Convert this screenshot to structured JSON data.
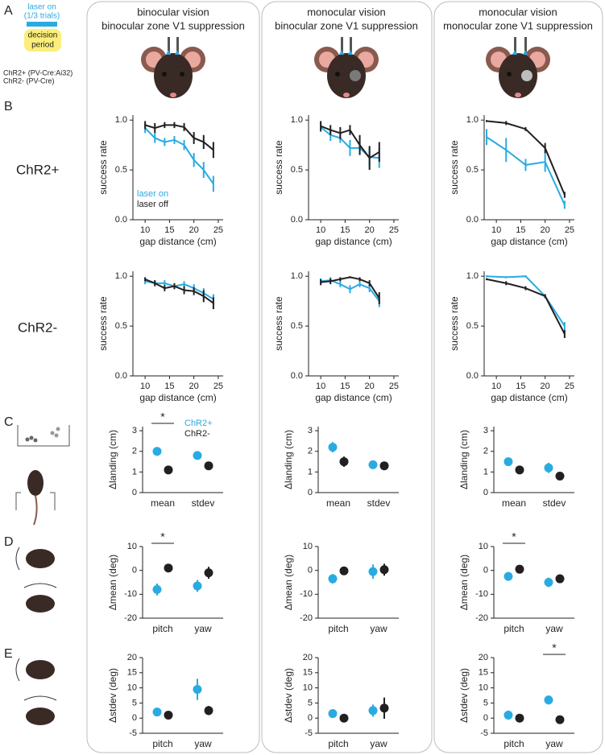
{
  "panel_labels": [
    "A",
    "B",
    "C",
    "D",
    "E"
  ],
  "legend": {
    "laser": [
      "laser on",
      "(1/3 trials)"
    ],
    "period": [
      "decision",
      "period"
    ],
    "genotypes": [
      "ChR2+ (PV-Cre:Ai32)",
      "ChR2- (PV-Cre)"
    ]
  },
  "row_labels": [
    "ChR2+",
    "ChR2-"
  ],
  "columns": [
    {
      "title": [
        "binocular vision",
        "binocular zone V1 suppression"
      ]
    },
    {
      "title": [
        "monocular vision",
        "binocular zone V1 suppression"
      ]
    },
    {
      "title": [
        "monocular vision",
        "monocular zone V1 suppression"
      ]
    }
  ],
  "chart_data": [
    {
      "type": "line",
      "xlabel": "gap distance (cm)",
      "ylabel": "success rate",
      "xlim": [
        7.5,
        26
      ],
      "ylim": [
        0,
        1.05
      ],
      "xticks": [
        10,
        15,
        20,
        25
      ],
      "yticks": [
        {
          "value": 0,
          "label": "0.0"
        },
        0.5,
        {
          "value": 1,
          "label": "1.0"
        }
      ],
      "legend": "lower left",
      "series": [
        {
          "name": "laser on",
          "color": "#29abe2",
          "x": [
            10,
            12,
            14,
            16,
            18,
            20,
            22,
            24
          ],
          "values": [
            0.92,
            0.82,
            0.78,
            0.8,
            0.75,
            0.6,
            0.5,
            0.36
          ],
          "errors": [
            0.05,
            0.05,
            0.04,
            0.04,
            0.05,
            0.07,
            0.08,
            0.08
          ]
        },
        {
          "name": "laser off",
          "color": "#231f20",
          "x": [
            10,
            12,
            14,
            16,
            18,
            20,
            22,
            24
          ],
          "values": [
            0.95,
            0.92,
            0.95,
            0.95,
            0.93,
            0.82,
            0.78,
            0.7
          ],
          "errors": [
            0.04,
            0.05,
            0.03,
            0.03,
            0.04,
            0.06,
            0.07,
            0.08
          ]
        }
      ]
    },
    {
      "type": "line",
      "xlabel": "gap distance (cm)",
      "ylabel": "success rate",
      "xlim": [
        7.5,
        26
      ],
      "ylim": [
        0,
        1.05
      ],
      "xticks": [
        10,
        15,
        20,
        25
      ],
      "yticks": [
        {
          "value": 0,
          "label": "0.0"
        },
        0.5,
        {
          "value": 1,
          "label": "1.0"
        }
      ],
      "series": [
        {
          "color": "#29abe2",
          "x": [
            10,
            12,
            14,
            16,
            18,
            20,
            22
          ],
          "values": [
            0.93,
            0.85,
            0.82,
            0.72,
            0.72,
            0.63,
            0.62
          ],
          "errors": [
            0.05,
            0.06,
            0.05,
            0.08,
            0.07,
            0.1,
            0.1
          ]
        },
        {
          "color": "#231f20",
          "x": [
            10,
            12,
            14,
            16,
            18,
            20,
            22
          ],
          "values": [
            0.94,
            0.9,
            0.87,
            0.9,
            0.75,
            0.62,
            0.68
          ],
          "errors": [
            0.05,
            0.05,
            0.06,
            0.05,
            0.1,
            0.12,
            0.1
          ]
        }
      ]
    },
    {
      "type": "line",
      "xlabel": "gap distance (cm)",
      "ylabel": "success rate",
      "xlim": [
        7.5,
        26
      ],
      "ylim": [
        0,
        1.05
      ],
      "xticks": [
        10,
        15,
        20,
        25
      ],
      "yticks": [
        {
          "value": 0,
          "label": "0.0"
        },
        0.5,
        {
          "value": 1,
          "label": "1.0"
        }
      ],
      "series": [
        {
          "color": "#29abe2",
          "x": [
            8,
            12,
            16,
            20,
            24
          ],
          "values": [
            0.83,
            0.7,
            0.55,
            0.58,
            0.15
          ],
          "errors": [
            0.08,
            0.12,
            0.06,
            0.1,
            0.04
          ]
        },
        {
          "color": "#231f20",
          "x": [
            8,
            12,
            16,
            20,
            24
          ],
          "values": [
            0.99,
            0.97,
            0.91,
            0.72,
            0.25
          ],
          "errors": [
            0.01,
            0.02,
            0.02,
            0.05,
            0.03
          ]
        }
      ]
    },
    {
      "type": "line",
      "xlabel": "gap distance (cm)",
      "ylabel": "success rate",
      "xlim": [
        7.5,
        26
      ],
      "ylim": [
        0,
        1.05
      ],
      "xticks": [
        10,
        15,
        20,
        25
      ],
      "yticks": [
        {
          "value": 0,
          "label": "0.0"
        },
        0.5,
        {
          "value": 1,
          "label": "1.0"
        }
      ],
      "series": [
        {
          "color": "#29abe2",
          "x": [
            10,
            12,
            14,
            16,
            18,
            20,
            22,
            24
          ],
          "values": [
            0.95,
            0.93,
            0.93,
            0.9,
            0.92,
            0.88,
            0.83,
            0.77
          ],
          "errors": [
            0.03,
            0.03,
            0.03,
            0.03,
            0.03,
            0.04,
            0.05,
            0.05
          ]
        },
        {
          "color": "#231f20",
          "x": [
            10,
            12,
            14,
            16,
            18,
            20,
            22,
            24
          ],
          "values": [
            0.97,
            0.93,
            0.88,
            0.9,
            0.86,
            0.85,
            0.8,
            0.73
          ],
          "errors": [
            0.02,
            0.03,
            0.03,
            0.03,
            0.04,
            0.04,
            0.06,
            0.06
          ]
        }
      ]
    },
    {
      "type": "line",
      "xlabel": "gap distance (cm)",
      "ylabel": "success rate",
      "xlim": [
        7.5,
        26
      ],
      "ylim": [
        0,
        1.05
      ],
      "xticks": [
        10,
        15,
        20,
        25
      ],
      "yticks": [
        {
          "value": 0,
          "label": "0.0"
        },
        0.5,
        {
          "value": 1,
          "label": "1.0"
        }
      ],
      "series": [
        {
          "color": "#29abe2",
          "x": [
            10,
            12,
            14,
            16,
            18,
            20,
            22
          ],
          "values": [
            0.95,
            0.96,
            0.92,
            0.87,
            0.92,
            0.88,
            0.75
          ],
          "errors": [
            0.03,
            0.03,
            0.03,
            0.04,
            0.03,
            0.04,
            0.06
          ]
        },
        {
          "color": "#231f20",
          "x": [
            10,
            12,
            14,
            16,
            18,
            20,
            22
          ],
          "values": [
            0.94,
            0.95,
            0.97,
            0.99,
            0.97,
            0.93,
            0.78
          ],
          "errors": [
            0.03,
            0.03,
            0.02,
            0.01,
            0.02,
            0.03,
            0.06
          ]
        }
      ]
    },
    {
      "type": "line",
      "xlabel": "gap distance (cm)",
      "ylabel": "success rate",
      "xlim": [
        7.5,
        26
      ],
      "ylim": [
        0,
        1.05
      ],
      "xticks": [
        10,
        15,
        20,
        25
      ],
      "yticks": [
        {
          "value": 0,
          "label": "0.0"
        },
        0.5,
        {
          "value": 1,
          "label": "1.0"
        }
      ],
      "series": [
        {
          "color": "#29abe2",
          "x": [
            8,
            12,
            16,
            20,
            24
          ],
          "values": [
            1.0,
            0.99,
            1.0,
            0.8,
            0.5
          ],
          "errors": [
            0.01,
            0.01,
            0.01,
            0.02,
            0.04
          ]
        },
        {
          "color": "#231f20",
          "x": [
            8,
            12,
            16,
            20,
            24
          ],
          "values": [
            0.97,
            0.93,
            0.88,
            0.8,
            0.42
          ],
          "errors": [
            0.01,
            0.02,
            0.02,
            0.02,
            0.04
          ]
        }
      ]
    },
    {
      "type": "dot",
      "ylabel": "Δlanding (cm)",
      "categories": [
        "mean",
        "stdev"
      ],
      "ylim": [
        0,
        3.2
      ],
      "yticks": [
        0,
        1,
        2,
        3
      ],
      "legend": "upper right",
      "series": [
        {
          "name": "ChR2+",
          "color": "#29abe2",
          "values": [
            2.0,
            1.8
          ],
          "errors": [
            0.2,
            0.2
          ]
        },
        {
          "name": "ChR2-",
          "color": "#231f20",
          "values": [
            1.1,
            1.3
          ],
          "errors": [
            0.2,
            0.15
          ]
        }
      ],
      "significance": [
        {
          "text": "*",
          "category": 0
        }
      ]
    },
    {
      "type": "dot",
      "ylabel": "Δlanding (cm)",
      "categories": [
        "mean",
        "stdev"
      ],
      "ylim": [
        0,
        3.2
      ],
      "yticks": [
        0,
        1,
        2,
        3
      ],
      "series": [
        {
          "color": "#29abe2",
          "values": [
            2.2,
            1.35
          ],
          "errors": [
            0.25,
            0.15
          ]
        },
        {
          "color": "#231f20",
          "values": [
            1.5,
            1.3
          ],
          "errors": [
            0.25,
            0.15
          ]
        }
      ]
    },
    {
      "type": "dot",
      "ylabel": "Δlanding (cm)",
      "categories": [
        "mean",
        "stdev"
      ],
      "ylim": [
        0,
        3.2
      ],
      "yticks": [
        0,
        1,
        2,
        3
      ],
      "series": [
        {
          "color": "#29abe2",
          "values": [
            1.5,
            1.2
          ],
          "errors": [
            0.2,
            0.25
          ]
        },
        {
          "color": "#231f20",
          "values": [
            1.1,
            0.8
          ],
          "errors": [
            0.2,
            0.1
          ]
        }
      ]
    },
    {
      "type": "dot",
      "ylabel": "Δmean (deg)",
      "categories": [
        "pitch",
        "yaw"
      ],
      "ylim": [
        -20,
        10
      ],
      "yticks": [
        -20,
        -10,
        0,
        10
      ],
      "series": [
        {
          "color": "#29abe2",
          "values": [
            -8,
            -6.5
          ],
          "errors": [
            2.5,
            2.5
          ]
        },
        {
          "color": "#231f20",
          "values": [
            1,
            -1
          ],
          "errors": [
            1.5,
            2.5
          ]
        }
      ],
      "significance": [
        {
          "text": "*",
          "category": 0
        }
      ]
    },
    {
      "type": "dot",
      "ylabel": "Δmean (deg)",
      "categories": [
        "pitch",
        "yaw"
      ],
      "ylim": [
        -20,
        10
      ],
      "yticks": [
        -20,
        -10,
        0,
        10
      ],
      "series": [
        {
          "color": "#29abe2",
          "values": [
            -3.5,
            -0.5
          ],
          "errors": [
            2,
            3
          ]
        },
        {
          "color": "#231f20",
          "values": [
            -0.2,
            0.3
          ],
          "errors": [
            1,
            2.5
          ]
        }
      ]
    },
    {
      "type": "dot",
      "ylabel": "Δmean (deg)",
      "categories": [
        "pitch",
        "yaw"
      ],
      "ylim": [
        -20,
        10
      ],
      "yticks": [
        -20,
        -10,
        0,
        10
      ],
      "series": [
        {
          "color": "#29abe2",
          "values": [
            -2.5,
            -5
          ],
          "errors": [
            1,
            2
          ]
        },
        {
          "color": "#231f20",
          "values": [
            0.5,
            -3.5
          ],
          "errors": [
            0.8,
            1.5
          ]
        }
      ],
      "significance": [
        {
          "text": "*",
          "category": 0
        }
      ]
    },
    {
      "type": "dot",
      "ylabel": "Δstdev (deg)",
      "categories": [
        "pitch",
        "yaw"
      ],
      "ylim": [
        -5,
        20
      ],
      "yticks": [
        -5,
        0,
        5,
        10,
        15,
        20
      ],
      "series": [
        {
          "color": "#29abe2",
          "values": [
            2,
            9.5
          ],
          "errors": [
            1.2,
            3.5
          ]
        },
        {
          "color": "#231f20",
          "values": [
            1,
            2.5
          ],
          "errors": [
            0.5,
            1.5
          ]
        }
      ]
    },
    {
      "type": "dot",
      "ylabel": "Δstdev (deg)",
      "categories": [
        "pitch",
        "yaw"
      ],
      "ylim": [
        -5,
        20
      ],
      "yticks": [
        -5,
        0,
        5,
        10,
        15,
        20
      ],
      "series": [
        {
          "color": "#29abe2",
          "values": [
            1.5,
            2.5
          ],
          "errors": [
            1,
            2
          ]
        },
        {
          "color": "#231f20",
          "values": [
            0,
            3.3
          ],
          "errors": [
            0.3,
            3.5
          ]
        }
      ]
    },
    {
      "type": "dot",
      "ylabel": "Δstdev (deg)",
      "categories": [
        "pitch",
        "yaw"
      ],
      "ylim": [
        -5,
        20
      ],
      "yticks": [
        -5,
        0,
        5,
        10,
        15,
        20
      ],
      "series": [
        {
          "color": "#29abe2",
          "values": [
            1,
            6
          ],
          "errors": [
            1.5,
            1.5
          ]
        },
        {
          "color": "#231f20",
          "values": [
            0,
            -0.5
          ],
          "errors": [
            0.3,
            1
          ]
        }
      ],
      "significance": [
        {
          "text": "*",
          "category": 1
        }
      ]
    }
  ]
}
